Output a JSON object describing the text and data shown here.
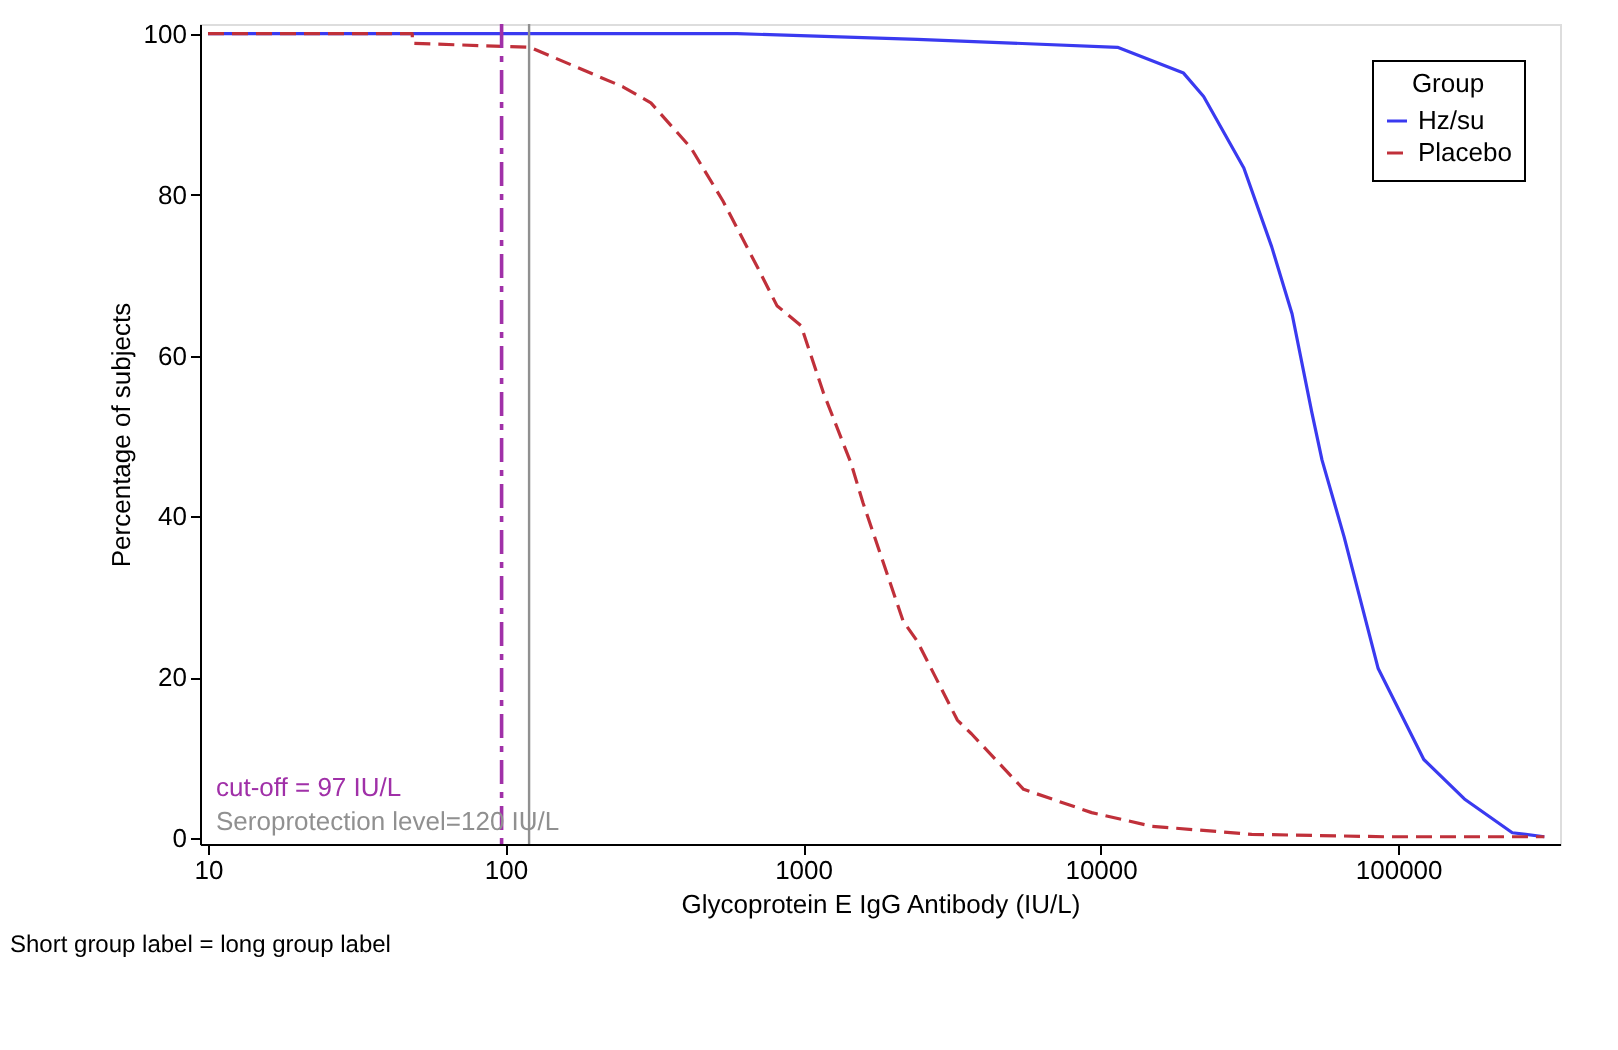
{
  "chart_data": {
    "type": "line",
    "xlabel": "Glycoprotein E IgG Antibody (IU/L)",
    "ylabel": "Percentage of subjects",
    "legend_title": "Group",
    "legend": "top right",
    "grid": false,
    "log": "x",
    "xlim": [
      9.4,
      350000
    ],
    "xticks": [
      10,
      100,
      1000,
      10000,
      100000
    ],
    "ylim": [
      -0.7,
      101.2
    ],
    "yticks": [
      0,
      20,
      40,
      60,
      80,
      100
    ],
    "series": [
      {
        "name": "Hz/su",
        "color": "#3a3af0",
        "line_style": "solid",
        "x": [
          10,
          600,
          2420,
          11400,
          19000,
          22200,
          30300,
          37600,
          44000,
          51300,
          55500,
          65800,
          85700,
          122000,
          167000,
          242000,
          310000
        ],
        "values": [
          100,
          100,
          99.3,
          98.3,
          95.1,
          92.2,
          83.3,
          73.5,
          65.2,
          52.9,
          47,
          37.5,
          21.1,
          9.8,
          4.9,
          0.7,
          0.2
        ]
      },
      {
        "name": "Placebo",
        "color": "#c0303a",
        "line_style": "dashed",
        "x": [
          10,
          48.6,
          48.6,
          121,
          193,
          248,
          308,
          420,
          538,
          700,
          817,
          985,
          1170,
          1450,
          1590,
          2170,
          2420,
          3300,
          3680,
          5510,
          9330,
          14900,
          32200,
          89800,
          310000
        ],
        "values": [
          100,
          100,
          98.8,
          98.3,
          95.1,
          93.4,
          91.4,
          85.8,
          79.2,
          71.1,
          66.2,
          63.7,
          55.4,
          46.6,
          41.7,
          27,
          24.5,
          14.7,
          13,
          6.1,
          3.2,
          1.5,
          0.5,
          0.2,
          0.2
        ]
      }
    ],
    "ref_lines": [
      {
        "axis": "x",
        "value": 97,
        "label": "cut-off = 97 IU/L",
        "color": "#a030a8",
        "line_style": "dashed"
      },
      {
        "axis": "x",
        "value": 120,
        "label": "Seroprotection level=120 IU/L",
        "color": "#909090",
        "line_style": "solid"
      }
    ],
    "annotations": [
      "Short group label = long group label"
    ]
  }
}
